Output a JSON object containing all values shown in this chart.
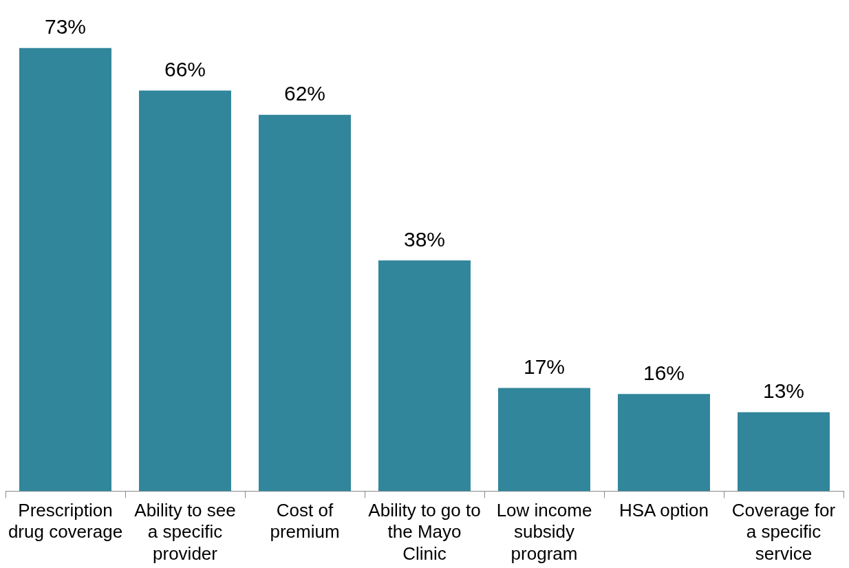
{
  "chart_data": {
    "type": "bar",
    "categories": [
      "Prescription drug coverage",
      "Ability to see a specific provider",
      "Cost of premium",
      "Ability to go to the Mayo Clinic",
      "Low income subsidy program",
      "HSA option",
      "Coverage for a specific service"
    ],
    "values": [
      73,
      66,
      62,
      38,
      17,
      16,
      13
    ],
    "color": "#31869b",
    "value_labels": [
      "73%",
      "66%",
      "62%",
      "38%",
      "17%",
      "16%",
      "13%"
    ],
    "grid": false,
    "legend": false
  }
}
